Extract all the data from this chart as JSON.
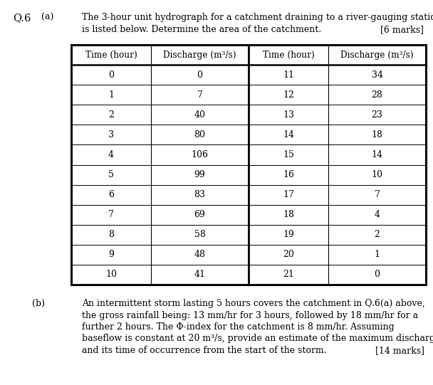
{
  "question_label": "Q.6",
  "part_a_label": "(a)",
  "part_a_text_line1": "The 3-hour unit hydrograph for a catchment draining to a river-gauging station",
  "part_a_text_line2": "is listed below. Determine the area of the catchment.",
  "part_a_marks": "[6 marks]",
  "col_headers": [
    "Time (hour)",
    "Discharge (m³/s)",
    "Time (hour)",
    "Discharge (m³/s)"
  ],
  "left_time": [
    0,
    1,
    2,
    3,
    4,
    5,
    6,
    7,
    8,
    9,
    10
  ],
  "left_discharge": [
    0,
    7,
    40,
    80,
    106,
    99,
    83,
    69,
    58,
    48,
    41
  ],
  "right_time": [
    11,
    12,
    13,
    14,
    15,
    16,
    17,
    18,
    19,
    20,
    21
  ],
  "right_discharge": [
    34,
    28,
    23,
    18,
    14,
    10,
    7,
    4,
    2,
    1,
    0
  ],
  "part_b_label": "(b)",
  "part_b_lines": [
    "An intermittent storm lasting 5 hours covers the catchment in Q.6(a) above,",
    "the gross rainfall being: 13 mm/hr for 3 hours, followed by 18 mm/hr for a",
    "further 2 hours. The Φ-index for the catchment is 8 mm/hr. Assuming",
    "baseflow is constant at 20 m³/s, provide an estimate of the maximum discharge",
    "and its time of occurrence from the start of the storm."
  ],
  "part_b_marks": "[14 marks]",
  "bg_color": "#ffffff",
  "text_color": "#000000",
  "font_size_body": 9.0,
  "font_size_label": 10.5
}
